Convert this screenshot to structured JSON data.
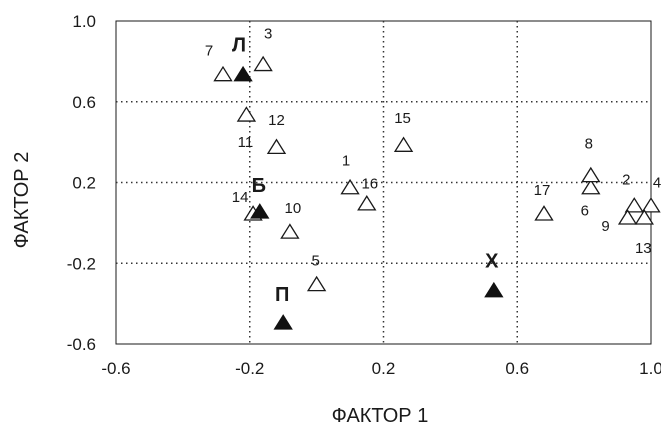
{
  "chart_data": {
    "type": "scatter",
    "title": "",
    "xlabel": "ФАКТОР 1",
    "ylabel": "ФАКТОР 2",
    "xlim": [
      -0.6,
      1.0
    ],
    "ylim": [
      -0.6,
      1.0
    ],
    "x_ticks": [
      "-0.6",
      "-0.2",
      "0.2",
      "0.6",
      "1.0"
    ],
    "y_ticks": [
      "1.0",
      "0.6",
      "0.2",
      "-0.2",
      "-0.6"
    ],
    "grid": "dotted at x=-0.2, 0.2, 0.6 and y=0.6, 0.2, -0.2",
    "series": [
      {
        "marker": "open-triangle",
        "color": "#1a1a1a",
        "points": [
          {
            "label": "1",
            "x": 0.1,
            "y": 0.17
          },
          {
            "label": "2",
            "x": 0.95,
            "y": 0.08
          },
          {
            "label": "3",
            "x": -0.16,
            "y": 0.78
          },
          {
            "label": "4",
            "x": 1.0,
            "y": 0.08
          },
          {
            "label": "5",
            "x": 0.0,
            "y": -0.31
          },
          {
            "label": "6",
            "x": 0.82,
            "y": 0.17
          },
          {
            "label": "7",
            "x": -0.28,
            "y": 0.73
          },
          {
            "label": "8",
            "x": 0.82,
            "y": 0.23
          },
          {
            "label": "9",
            "x": 0.93,
            "y": 0.02
          },
          {
            "label": "10",
            "x": -0.08,
            "y": -0.05
          },
          {
            "label": "11",
            "x": -0.21,
            "y": 0.53
          },
          {
            "label": "12",
            "x": -0.12,
            "y": 0.37
          },
          {
            "label": "13",
            "x": 0.98,
            "y": 0.02
          },
          {
            "label": "14",
            "x": -0.19,
            "y": 0.04
          },
          {
            "label": "15",
            "x": 0.26,
            "y": 0.38
          },
          {
            "label": "16",
            "x": 0.15,
            "y": 0.09
          },
          {
            "label": "17",
            "x": 0.68,
            "y": 0.04
          }
        ]
      },
      {
        "marker": "filled-triangle",
        "color": "#111111",
        "points": [
          {
            "label": "Л",
            "x": -0.22,
            "y": 0.73
          },
          {
            "label": "Б",
            "x": -0.17,
            "y": 0.05
          },
          {
            "label": "П",
            "x": -0.1,
            "y": -0.5
          },
          {
            "label": "Х",
            "x": 0.53,
            "y": -0.34
          }
        ]
      }
    ]
  }
}
